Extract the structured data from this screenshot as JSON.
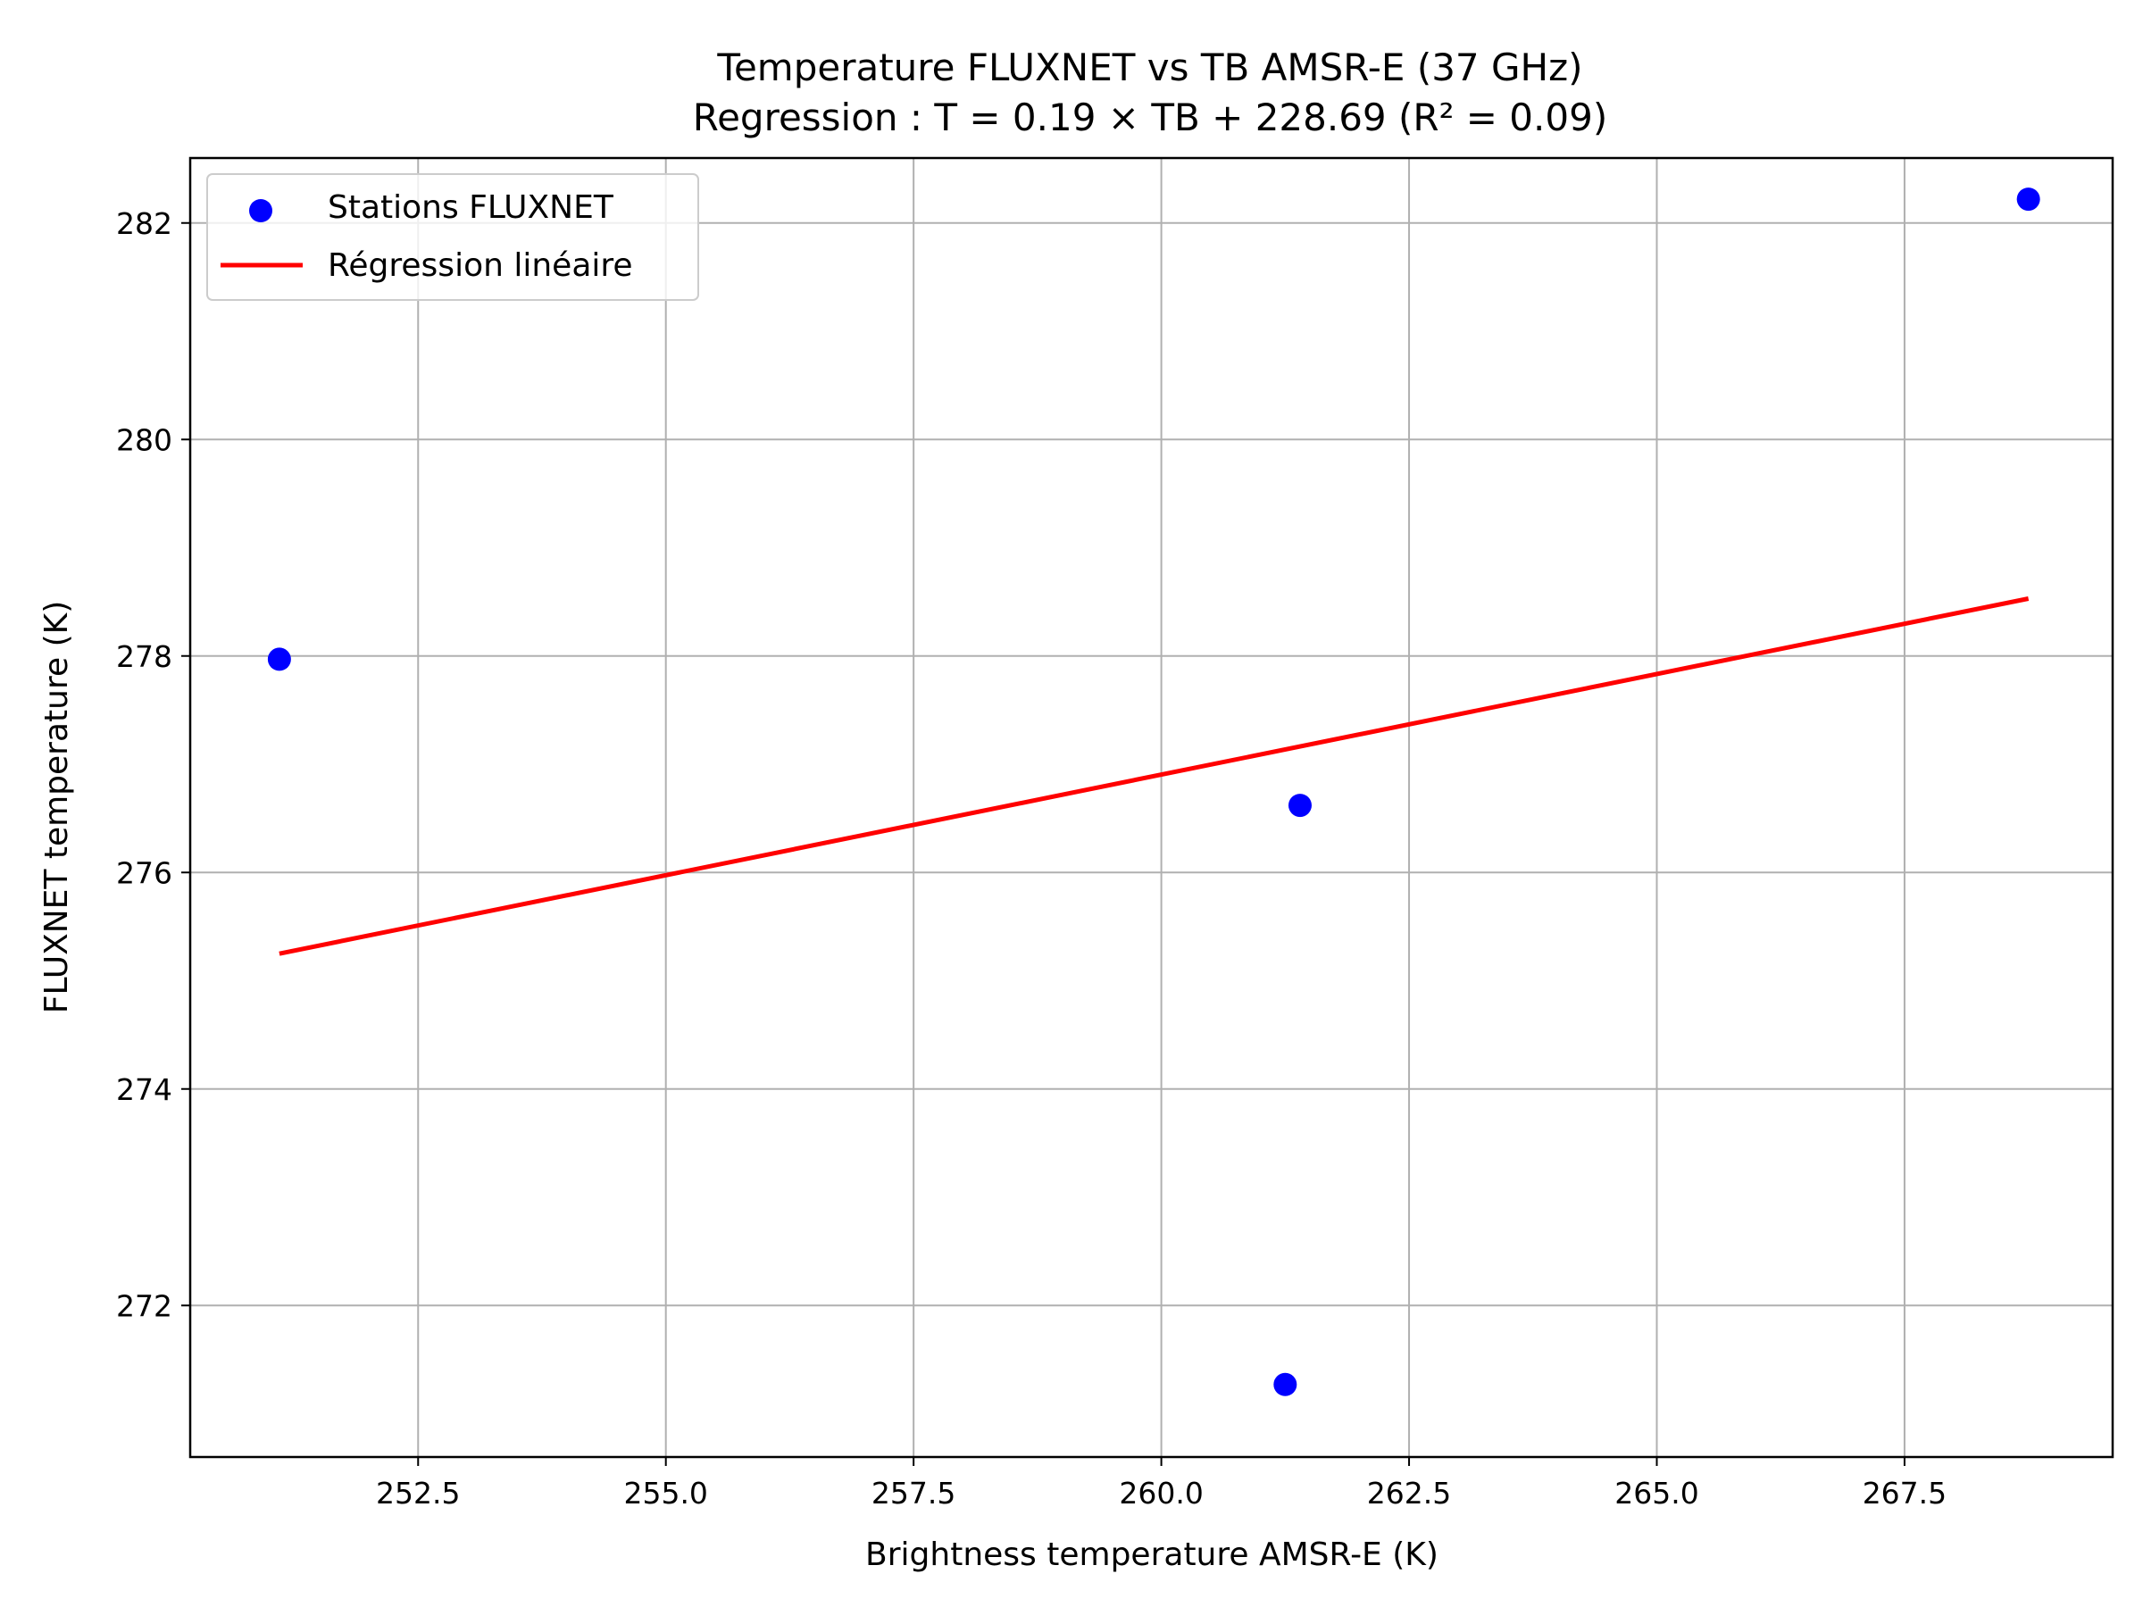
{
  "chart_data": {
    "type": "scatter",
    "title": "Temperature FLUXNET vs TB AMSR-E (37 GHz)",
    "subtitle": "Regression : T = 0.19 × TB + 228.69 (R² = 0.09)",
    "xlabel": "Brightness temperature AMSR-E (K)",
    "ylabel": "FLUXNET temperature (K)",
    "xlim": [
      250.2,
      269.6
    ],
    "ylim": [
      270.6,
      282.6
    ],
    "x_ticks": [
      "252.5",
      "255.0",
      "257.5",
      "260.0",
      "262.5",
      "265.0",
      "267.5"
    ],
    "y_ticks": [
      "272",
      "274",
      "276",
      "278",
      "280",
      "282"
    ],
    "grid": true,
    "legend_position": "top-left",
    "series": [
      {
        "name": "Stations FLUXNET",
        "kind": "scatter",
        "color": "#0000ff",
        "x": [
          251.1,
          261.4,
          261.25,
          268.75
        ],
        "y": [
          277.97,
          276.62,
          271.27,
          282.22
        ]
      },
      {
        "name": "Régression linéaire",
        "kind": "line",
        "color": "#ff0000",
        "x": [
          251.1,
          268.75
        ],
        "y": [
          275.25,
          278.53
        ]
      }
    ]
  }
}
